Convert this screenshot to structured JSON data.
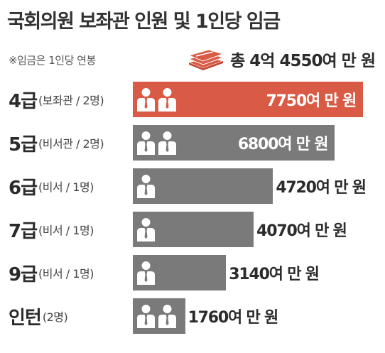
{
  "header": {
    "title": "국회의원 보좌관 인원 및 1인당 임금",
    "note": "※임금은 1인당 연봉",
    "total": "총 4억 4550여 만 원"
  },
  "colors": {
    "highlight": "#d95a45",
    "bar": "#7a7a7a",
    "text": "#2b2b2b"
  },
  "chart_data": {
    "type": "bar",
    "orientation": "horizontal",
    "title": "국회의원 보좌관 인원 및 1인당 임금",
    "unit": "만 원",
    "categories": [
      "4급",
      "5급",
      "6급",
      "7급",
      "9급",
      "인턴"
    ],
    "sublabels": [
      "(보좌관 / 2명)",
      "(비서관 / 2명)",
      "(비서 / 1명)",
      "(비서 / 1명)",
      "(비서 / 1명)",
      "(2명)"
    ],
    "headcount": [
      2,
      2,
      1,
      1,
      1,
      2
    ],
    "values": [
      7750,
      6800,
      4720,
      4070,
      3140,
      1760
    ],
    "value_labels": [
      "7750여 만 원",
      "6800여 만 원",
      "4720여 만 원",
      "4070여 만 원",
      "3140여 만 원",
      "1760여 만 원"
    ],
    "highlighted": [
      true,
      false,
      false,
      false,
      false,
      false
    ]
  }
}
